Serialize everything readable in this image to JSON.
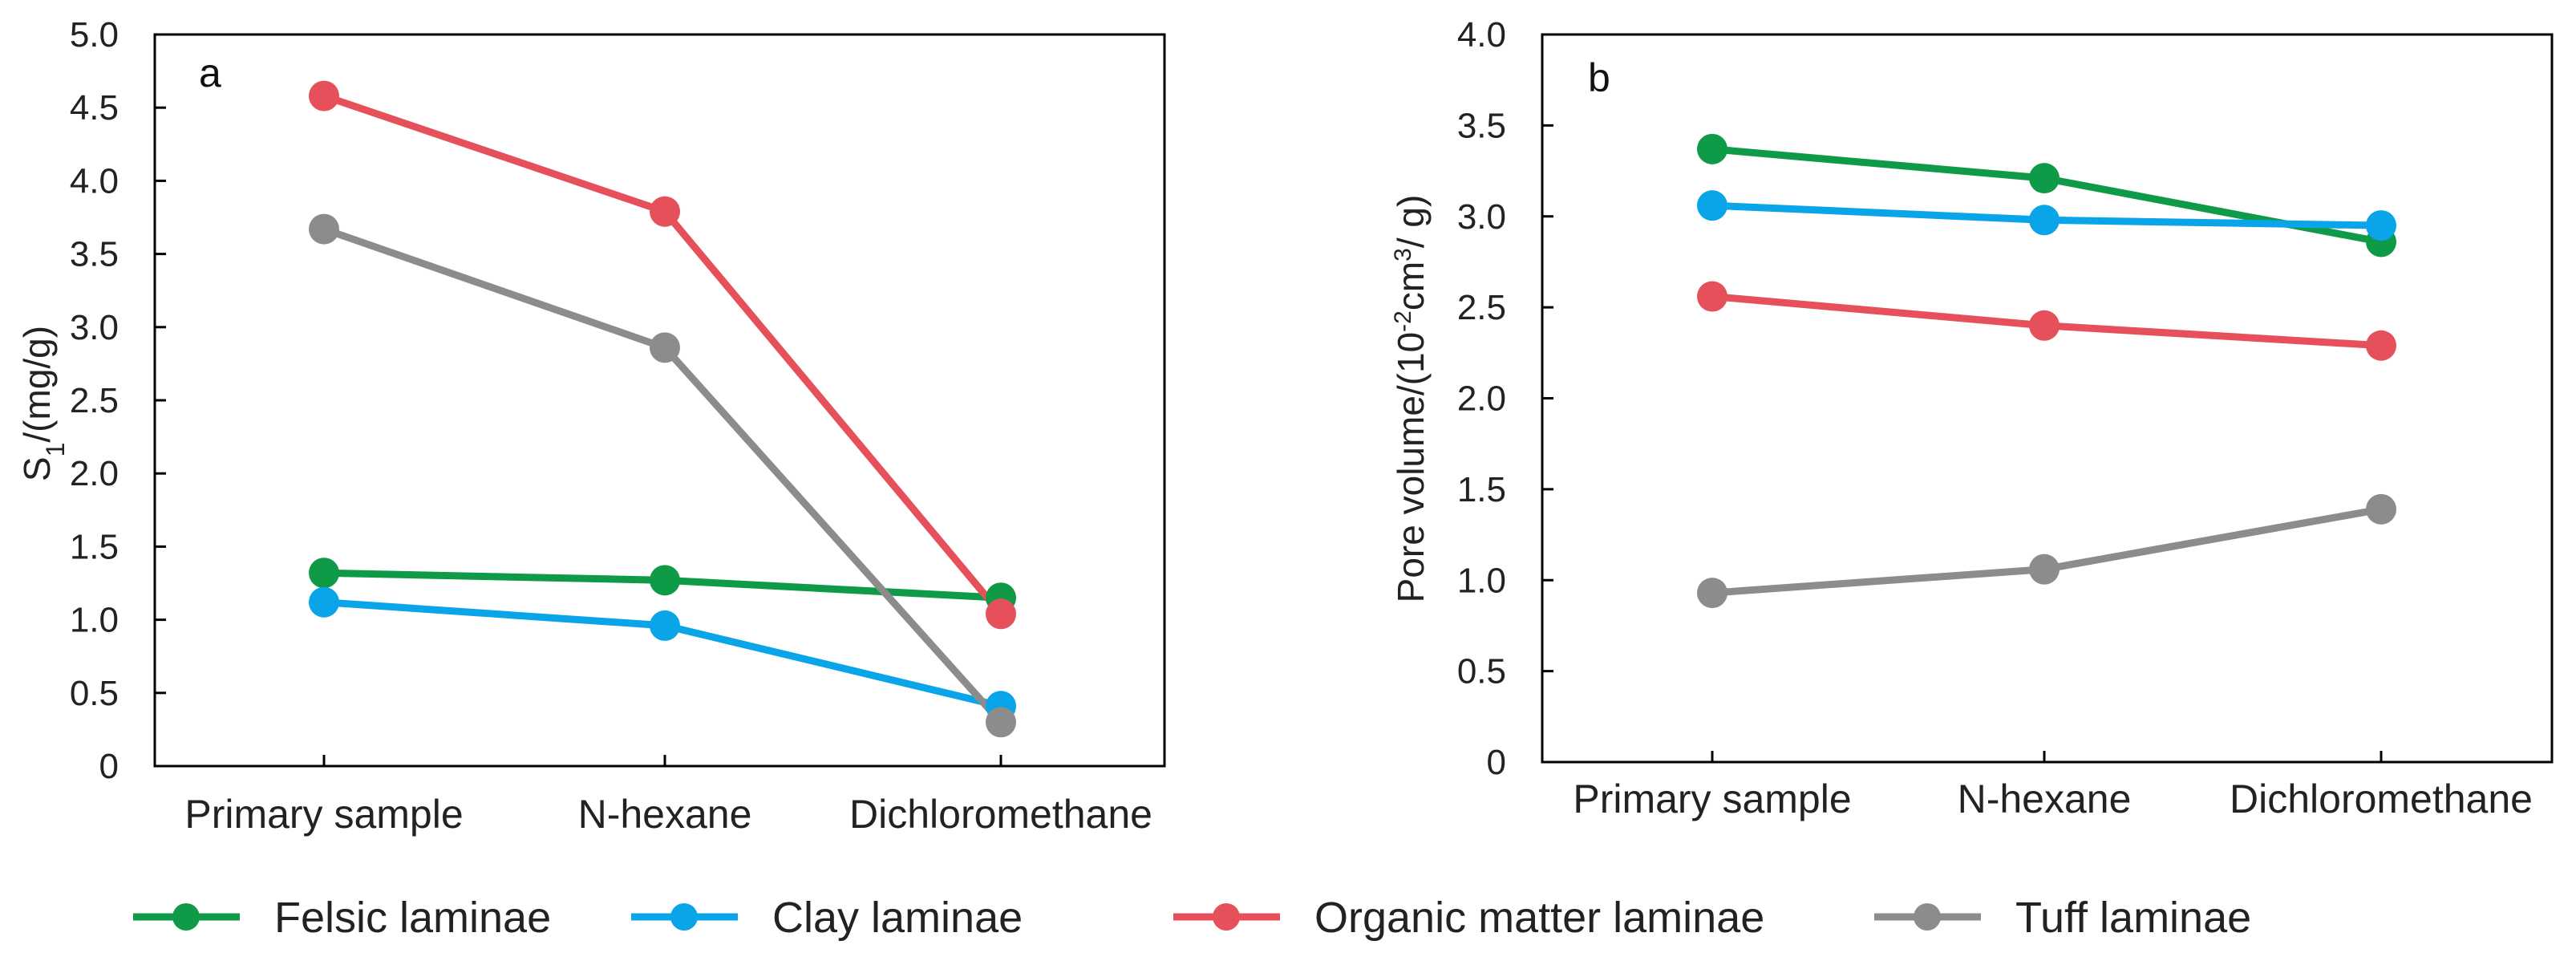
{
  "chart_data": [
    {
      "type": "line",
      "panel_label": "a",
      "categories": [
        "Primary sample",
        "N-hexane",
        "Dichloromethane"
      ],
      "ylabel": "S",
      "ylabel_sub": "1",
      "ylabel_tail": "/(mg/g)",
      "ylim": [
        0,
        5.0
      ],
      "yticks": [
        "0",
        "0.5",
        "1.0",
        "1.5",
        "2.0",
        "2.5",
        "3.0",
        "3.5",
        "4.0",
        "4.5",
        "5.0"
      ],
      "series": [
        {
          "name": "Felsic laminae",
          "values": [
            1.32,
            1.27,
            1.15
          ]
        },
        {
          "name": "Clay laminae",
          "values": [
            1.12,
            0.96,
            0.41
          ]
        },
        {
          "name": "Organic matter laminae",
          "values": [
            4.58,
            3.79,
            1.04
          ]
        },
        {
          "name": "Tuff laminae",
          "values": [
            3.67,
            2.86,
            0.3
          ]
        }
      ]
    },
    {
      "type": "line",
      "panel_label": "b",
      "categories": [
        "Primary sample",
        "N-hexane",
        "Dichloromethane"
      ],
      "ylabel_pre": "Pore volume/(10",
      "ylabel_sup1": "-2",
      "ylabel_mid": "cm",
      "ylabel_sup2": "3",
      "ylabel_tail": "/ g)",
      "ylim": [
        0,
        4.0
      ],
      "yticks": [
        "0",
        "0.5",
        "1.0",
        "1.5",
        "2.0",
        "2.5",
        "3.0",
        "3.5",
        "4.0"
      ],
      "series": [
        {
          "name": "Felsic laminae",
          "values": [
            3.37,
            3.21,
            2.86
          ]
        },
        {
          "name": "Clay laminae",
          "values": [
            3.06,
            2.98,
            2.95
          ]
        },
        {
          "name": "Organic matter laminae",
          "values": [
            2.56,
            2.4,
            2.29
          ]
        },
        {
          "name": "Tuff laminae",
          "values": [
            0.93,
            1.06,
            1.39
          ]
        }
      ]
    }
  ],
  "legend": [
    {
      "name": "Felsic laminae",
      "color": "#0f9a48"
    },
    {
      "name": "Clay laminae",
      "color": "#0aa4e8"
    },
    {
      "name": "Organic matter laminae",
      "color": "#e5505a"
    },
    {
      "name": "Tuff laminae",
      "color": "#8c8c8c"
    }
  ]
}
